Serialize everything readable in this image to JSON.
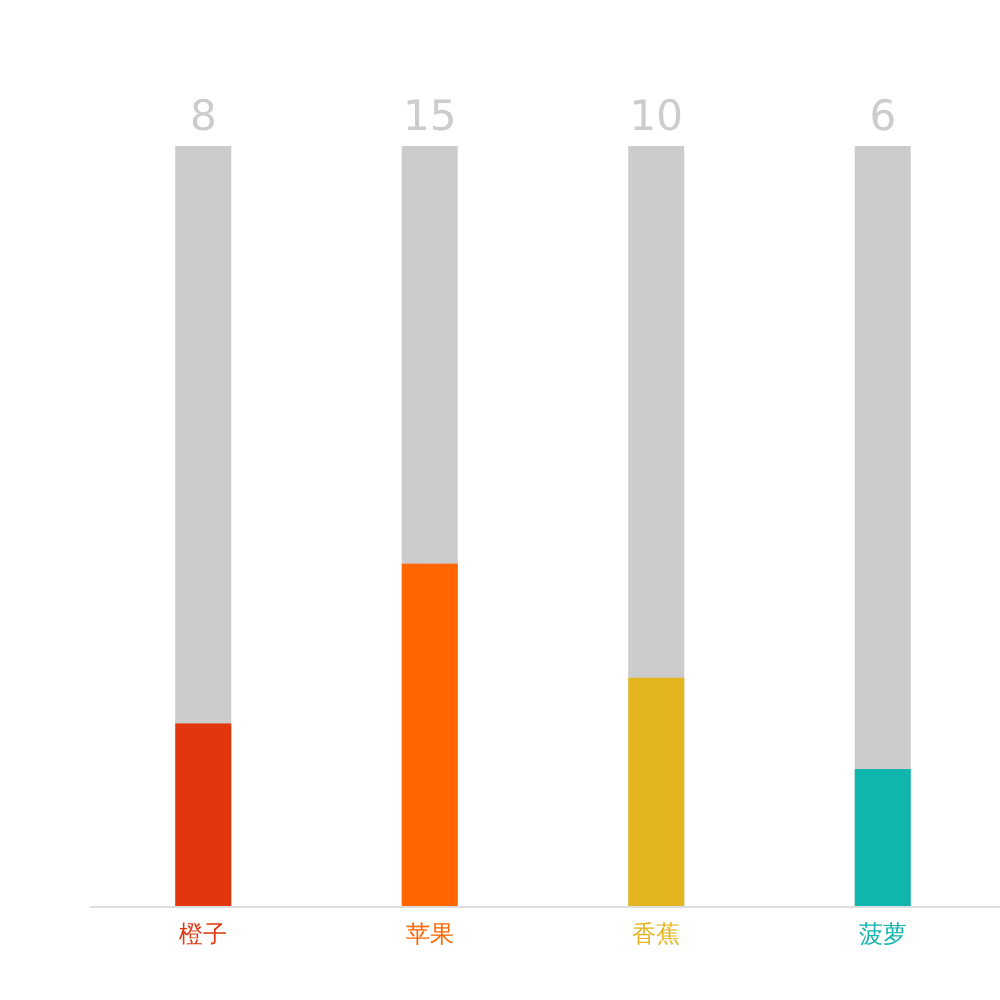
{
  "chart_data": {
    "type": "bar",
    "categories": [
      "橙子",
      "苹果",
      "香蕉",
      "菠萝"
    ],
    "values": [
      8,
      15,
      10,
      6
    ],
    "value_labels": [
      "8",
      "15",
      "10",
      "6"
    ],
    "colors": [
      "#e2360f",
      "#ff6600",
      "#e3b520",
      "#10b5ae"
    ],
    "tick_labels": "x"
  }
}
